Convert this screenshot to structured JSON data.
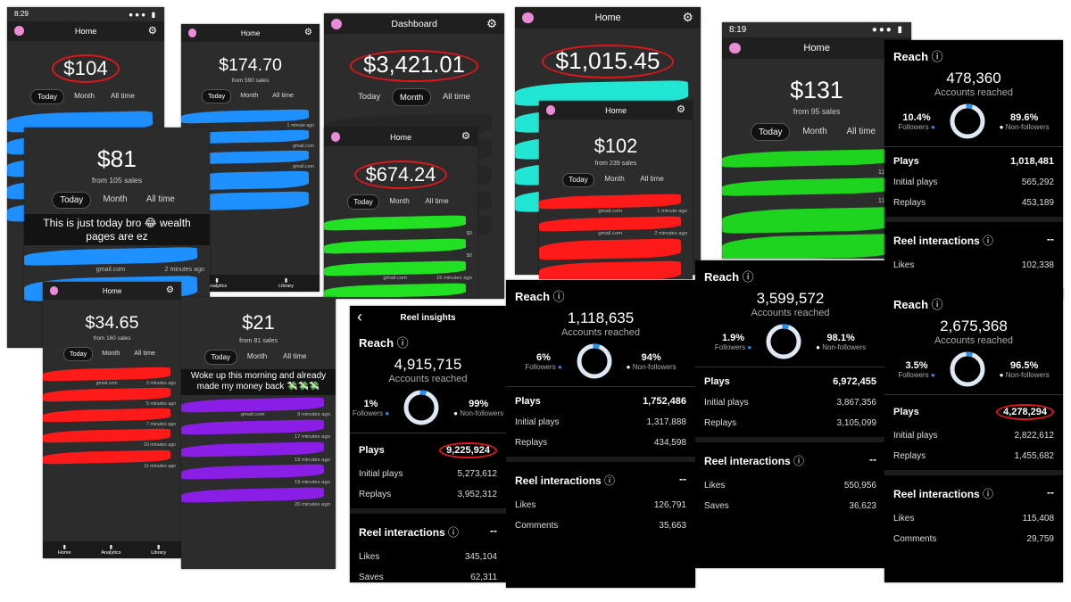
{
  "sales_panels": [
    {
      "status_time": "8:29",
      "title": "Home",
      "amount": "$104",
      "tabs": [
        "Today",
        "Month",
        "All time"
      ],
      "rows": []
    },
    {
      "title": "Home",
      "amount": "$174.70",
      "sales": "from 590 sales",
      "tabs": [
        "Today",
        "Month",
        "All time"
      ],
      "rows": [
        [
          "1 minute ago"
        ],
        [
          "gmail.com"
        ],
        [
          "gmail.com"
        ]
      ],
      "nav": [
        "Analytics",
        "Library"
      ]
    },
    {
      "title": "Dashboard",
      "amount": "$3,421.01",
      "tabs": [
        "Today",
        "Month",
        "All time"
      ],
      "rows": []
    },
    {
      "title": "Home",
      "amount": "$1,015.45",
      "rows": []
    },
    {
      "status_time": "8:19",
      "title": "Home",
      "amount": "$131",
      "sales": "from 95 sales",
      "tabs": [
        "Today",
        "Month",
        "All time"
      ],
      "rows": [
        [
          "11 minute"
        ],
        [
          "11 minute"
        ]
      ]
    },
    {
      "amount": "$81",
      "sales": "from 105 sales",
      "tabs": [
        "Today",
        "Month",
        "All time"
      ],
      "caption": "This is just today bro 😂 wealth pages are ez",
      "rows": [
        [
          "gmail.com",
          "2 minutes ago"
        ]
      ]
    },
    {
      "title": "Home",
      "amount": "$674.24",
      "tabs": [
        "Today",
        "Month",
        "All time"
      ],
      "rows": [
        [
          "$0"
        ],
        [
          "$0"
        ],
        [
          "gmail.com",
          "15 minutes ago"
        ],
        [
          "gmail.com",
          "15 minutes ago"
        ]
      ]
    },
    {
      "title": "Home",
      "amount": "$102",
      "sales": "from 239 sales",
      "tabs": [
        "Today",
        "Month",
        "All time"
      ],
      "rows": [
        [
          "gmail.com",
          "1 minute ago"
        ],
        [
          "gmail.com",
          "2 minutes ago"
        ]
      ]
    },
    {
      "title": "Home",
      "amount": "$34.65",
      "sales": "from 160 sales",
      "tabs": [
        "Today",
        "Month",
        "All time"
      ],
      "rows": [
        [
          "gmail.com",
          "3 minutes ago"
        ],
        [
          "5 minutes ago"
        ],
        [
          "7 minutes ago"
        ],
        [
          "10 minutes ago"
        ],
        [
          "11 minutes ago"
        ]
      ],
      "nav": [
        "Home",
        "Analytics",
        "Library"
      ]
    },
    {
      "amount": "$21",
      "sales": "from 81 sales",
      "tabs": [
        "Today",
        "Month",
        "All time"
      ],
      "caption": "Woke up this morning and already made my money back 💸💸💸",
      "rows": [
        [
          "gmail.com",
          "9 minutes ago"
        ],
        [
          "17 minutes ago"
        ],
        [
          "19 minutes ago"
        ],
        [
          "19 minutes ago"
        ],
        [
          "20 minutes ago"
        ]
      ]
    }
  ],
  "insight_panels": [
    {
      "header": "Reel insights",
      "reach_title": "Reach",
      "reach": "4,915,715",
      "reach_label": "Accounts reached",
      "followers_pct": "1%",
      "followers_label": "Followers",
      "non_followers_pct": "99%",
      "non_followers_label": "Non-followers",
      "plays": [
        [
          "Plays",
          "9,225,924"
        ],
        [
          "Initial plays",
          "5,273,612"
        ],
        [
          "Replays",
          "3,952,312"
        ]
      ],
      "interactions_title": "Reel interactions",
      "interactions_value": "--",
      "interactions": [
        [
          "Likes",
          "345,104"
        ],
        [
          "Saves",
          "62,311"
        ]
      ]
    },
    {
      "reach_title": "Reach",
      "reach": "1,118,635",
      "reach_label": "Accounts reached",
      "followers_pct": "6%",
      "followers_label": "Followers",
      "non_followers_pct": "94%",
      "non_followers_label": "Non-followers",
      "plays": [
        [
          "Plays",
          "1,752,486"
        ],
        [
          "Initial plays",
          "1,317,888"
        ],
        [
          "Replays",
          "434,598"
        ]
      ],
      "interactions_title": "Reel interactions",
      "interactions_value": "--",
      "interactions": [
        [
          "Likes",
          "126,791"
        ],
        [
          "Comments",
          "35,663"
        ]
      ]
    },
    {
      "reach_title": "Reach",
      "reach": "3,599,572",
      "reach_label": "Accounts reached",
      "followers_pct": "1.9%",
      "followers_label": "Followers",
      "non_followers_pct": "98.1%",
      "non_followers_label": "Non-followers",
      "plays": [
        [
          "Plays",
          "6,972,455"
        ],
        [
          "Initial plays",
          "3,867,356"
        ],
        [
          "Replays",
          "3,105,099"
        ]
      ],
      "interactions_title": "Reel interactions",
      "interactions_value": "--",
      "interactions": [
        [
          "Likes",
          "550,956"
        ],
        [
          "Saves",
          "36,623"
        ]
      ]
    },
    {
      "reach_title": "Reach",
      "reach": "478,360",
      "reach_label": "Accounts reached",
      "followers_pct": "10.4%",
      "followers_label": "Followers",
      "non_followers_pct": "89.6%",
      "non_followers_label": "Non-followers",
      "plays": [
        [
          "Plays",
          "1,018,481"
        ],
        [
          "Initial plays",
          "565,292"
        ],
        [
          "Replays",
          "453,189"
        ]
      ],
      "interactions_title": "Reel interactions",
      "interactions_value": "--",
      "interactions": [
        [
          "Likes",
          "102,338"
        ]
      ]
    },
    {
      "reach_title": "Reach",
      "reach": "2,675,368",
      "reach_label": "Accounts reached",
      "followers_pct": "3.5%",
      "followers_label": "Followers",
      "non_followers_pct": "96.5%",
      "non_followers_label": "Non-followers",
      "plays": [
        [
          "Plays",
          "4,278,294"
        ],
        [
          "Initial plays",
          "2,822,612"
        ],
        [
          "Replays",
          "1,455,682"
        ]
      ],
      "interactions_title": "Reel interactions",
      "interactions_value": "--",
      "interactions": [
        [
          "Likes",
          "115,408"
        ],
        [
          "Comments",
          "29,759"
        ]
      ]
    }
  ]
}
